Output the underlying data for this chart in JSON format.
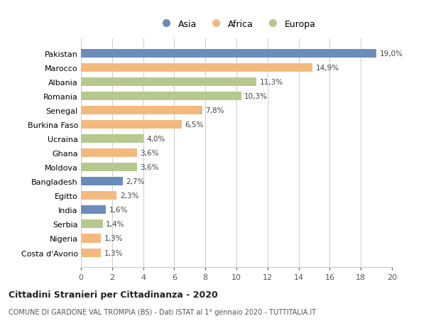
{
  "countries": [
    "Costa d'Avorio",
    "Nigeria",
    "Serbia",
    "India",
    "Egitto",
    "Bangladesh",
    "Moldova",
    "Ghana",
    "Ucraina",
    "Burkina Faso",
    "Senegal",
    "Romania",
    "Albania",
    "Marocco",
    "Pakistan"
  ],
  "values": [
    1.3,
    1.3,
    1.4,
    1.6,
    2.3,
    2.7,
    3.6,
    3.6,
    4.0,
    6.5,
    7.8,
    10.3,
    11.3,
    14.9,
    19.0
  ],
  "labels": [
    "1,3%",
    "1,3%",
    "1,4%",
    "1,6%",
    "2,3%",
    "2,7%",
    "3,6%",
    "3,6%",
    "4,0%",
    "6,5%",
    "7,8%",
    "10,3%",
    "11,3%",
    "14,9%",
    "19,0%"
  ],
  "continents": [
    "Africa",
    "Africa",
    "Europa",
    "Asia",
    "Africa",
    "Asia",
    "Europa",
    "Africa",
    "Europa",
    "Africa",
    "Africa",
    "Europa",
    "Europa",
    "Africa",
    "Asia"
  ],
  "colors": {
    "Asia": "#6b8cba",
    "Africa": "#f4b97f",
    "Europa": "#b5c98e"
  },
  "title_main": "Cittadini Stranieri per Cittadinanza - 2020",
  "title_sub": "COMUNE DI GARDONE VAL TROMPIA (BS) - Dati ISTAT al 1° gennaio 2020 - TUTTITALIA.IT",
  "xlim": [
    0,
    20
  ],
  "xticks": [
    0,
    2,
    4,
    6,
    8,
    10,
    12,
    14,
    16,
    18,
    20
  ],
  "background_color": "#ffffff",
  "grid_color": "#cccccc"
}
